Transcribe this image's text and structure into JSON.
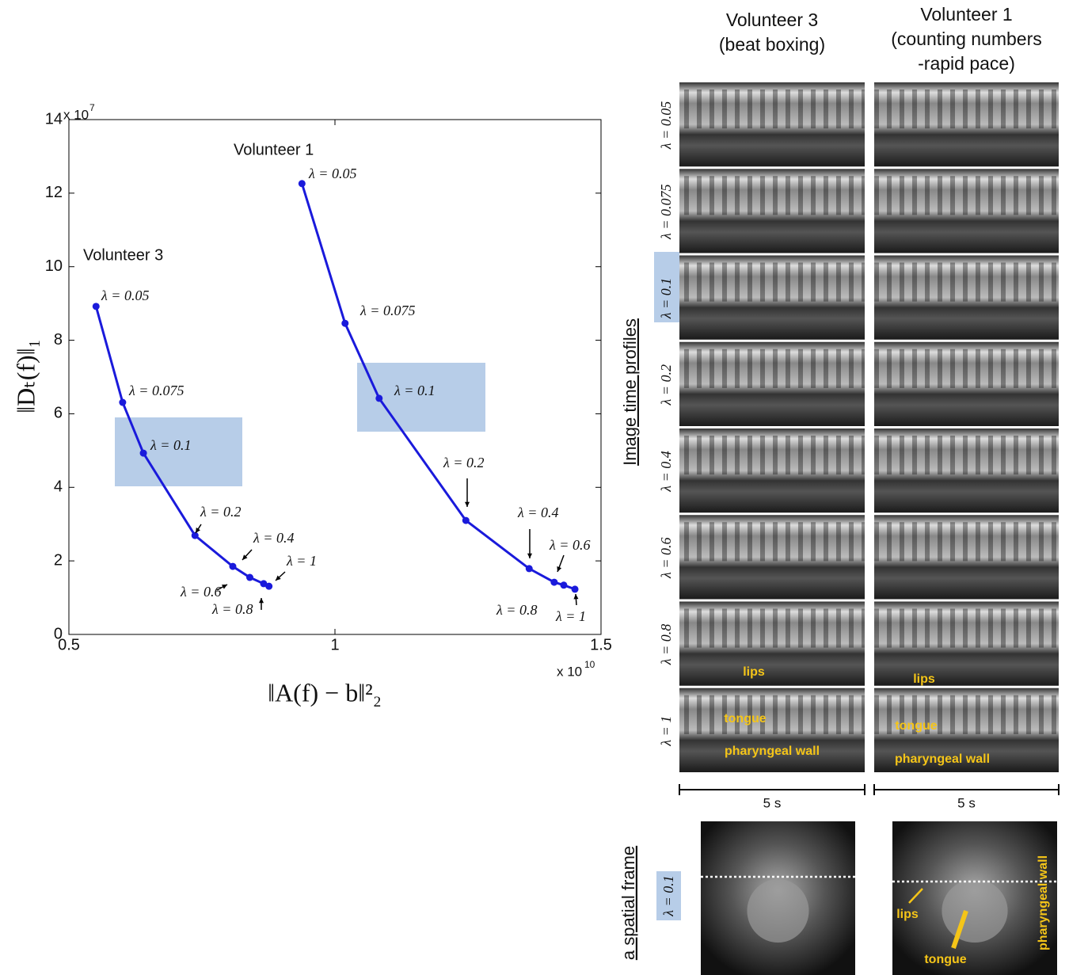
{
  "chart_data": {
    "type": "line",
    "series": [
      {
        "name": "Volunteer 3",
        "color": "#1a1adb",
        "x": [
          0.551,
          0.601,
          0.64,
          0.737,
          0.808,
          0.84,
          0.866,
          0.876
        ],
        "values": [
          8.92,
          6.31,
          4.93,
          2.69,
          1.85,
          1.55,
          1.38,
          1.31
        ],
        "point_labels": [
          "λ = 0.05",
          "λ = 0.075",
          "λ = 0.1",
          "λ = 0.2",
          "λ = 0.4",
          "λ = 0.6",
          "λ = 0.8",
          "λ = 1"
        ]
      },
      {
        "name": "Volunteer 1",
        "color": "#1a1adb",
        "x": [
          0.938,
          1.019,
          1.083,
          1.246,
          1.365,
          1.412,
          1.43,
          1.451
        ],
        "values": [
          12.26,
          8.46,
          6.42,
          3.1,
          1.79,
          1.42,
          1.34,
          1.23
        ],
        "point_labels": [
          "λ = 0.05",
          "λ = 0.075",
          "λ = 0.1",
          "λ = 0.2",
          "λ = 0.4",
          "λ = 0.6",
          "λ = 0.8",
          "λ = 1"
        ]
      }
    ],
    "xlim": [
      0.5,
      1.5
    ],
    "xticks": [
      0.5,
      1,
      1.5
    ],
    "ylim": [
      0,
      14
    ],
    "yticks": [
      0,
      2,
      4,
      6,
      8,
      10,
      12,
      14
    ],
    "x_label": "‖A(f) − b‖²₂",
    "y_label": "‖Dₜ(f)‖₁",
    "x_multiplier": {
      "base": "x 10",
      "exponent": "10"
    },
    "y_multiplier": {
      "base": "x 10",
      "exponent": "7"
    },
    "grid": false
  },
  "image_panels": {
    "columns": [
      {
        "title_lines": [
          "Volunteer 3",
          "(beat boxing)"
        ],
        "scale": "5 s",
        "annotations": [
          "lips",
          "tongue",
          "pharyngeal wall"
        ],
        "frame_annotations": []
      },
      {
        "title_lines": [
          "Volunteer 1",
          "(counting numbers",
          "-rapid pace)"
        ],
        "scale": "5 s",
        "annotations": [
          "lips",
          "tongue",
          "pharyngeal wall"
        ],
        "frame_annotations": [
          "lips",
          "tongue",
          "pharyngeal wall"
        ]
      }
    ],
    "row_labels": [
      "λ = 0.05",
      "λ = 0.075",
      "λ = 0.1",
      "λ = 0.2",
      "λ = 0.4",
      "λ = 0.6",
      "λ = 0.8",
      "λ = 1"
    ],
    "profiles_label": "Image time profiles",
    "frame_label": "a spatial frame",
    "frame_row_label": "λ = 0.1"
  }
}
